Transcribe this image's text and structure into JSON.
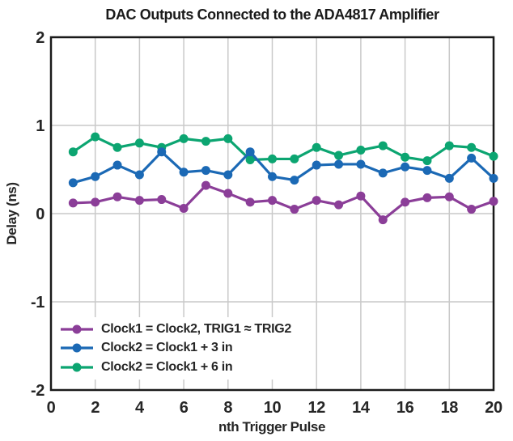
{
  "chart_data": {
    "type": "line",
    "title": "DAC Outputs Connected to the ADA4817 Amplifier",
    "xlabel": "nth Trigger Pulse",
    "ylabel": "Delay (ns)",
    "xlim": [
      0,
      20
    ],
    "ylim": [
      -2,
      2
    ],
    "x_ticks": [
      0,
      2,
      4,
      6,
      8,
      10,
      12,
      14,
      16,
      18,
      20
    ],
    "y_ticks": [
      2,
      1,
      0,
      -1,
      -2
    ],
    "grid": true,
    "legend_position": "lower-left",
    "x": [
      1,
      2,
      3,
      4,
      5,
      6,
      7,
      8,
      9,
      10,
      11,
      12,
      13,
      14,
      15,
      16,
      17,
      18,
      19,
      20
    ],
    "series": [
      {
        "name": "Clock1 = Clock2, TRIG1 ≈ TRIG2",
        "color": "#8B3E98",
        "values": [
          0.12,
          0.13,
          0.19,
          0.15,
          0.16,
          0.06,
          0.32,
          0.23,
          0.13,
          0.15,
          0.05,
          0.15,
          0.1,
          0.2,
          -0.07,
          0.13,
          0.18,
          0.19,
          0.05,
          0.14
        ]
      },
      {
        "name": "Clock2 = Clock1 + 3 in",
        "color": "#1B69B5",
        "values": [
          0.35,
          0.42,
          0.55,
          0.44,
          0.7,
          0.47,
          0.49,
          0.44,
          0.7,
          0.42,
          0.38,
          0.55,
          0.56,
          0.56,
          0.46,
          0.53,
          0.49,
          0.4,
          0.63,
          0.4
        ]
      },
      {
        "name": "Clock2 = Clock1 + 6 in",
        "color": "#0CA571",
        "values": [
          0.7,
          0.87,
          0.75,
          0.8,
          0.75,
          0.85,
          0.82,
          0.85,
          0.61,
          0.62,
          0.62,
          0.75,
          0.66,
          0.72,
          0.77,
          0.64,
          0.6,
          0.77,
          0.75,
          0.65
        ]
      }
    ]
  },
  "style": {
    "grid_color": "#C9C9C9",
    "frame_color": "#1A1A1A",
    "text_color": "#262626"
  }
}
